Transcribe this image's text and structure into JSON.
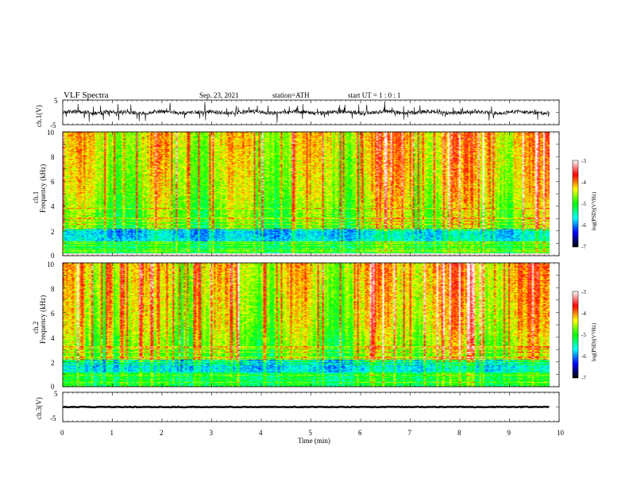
{
  "header": {
    "title": "VLF  Spectra",
    "date": "Sep. 23, 2021",
    "station": "station=ATH",
    "start": "start  UT  =    1  : 0   : 1"
  },
  "chart_data": [
    {
      "type": "line",
      "ylabel": "ch.1(V)",
      "ylim": [
        -5,
        5
      ],
      "yticks": [
        "5",
        "-5"
      ],
      "xlim": [
        0,
        10
      ],
      "series": [
        {
          "description_free": true,
          "color": "#000000",
          "approx_baseline": 0,
          "approx_amplitude": 5,
          "data_end_min": 9.8
        }
      ]
    },
    {
      "type": "heatmap",
      "ylabel": "ch.1\nFrequency (kHz)",
      "ylabel_line1": "ch.1",
      "ylabel_line2": "Frequency (kHz)",
      "ylim": [
        0,
        10
      ],
      "yticks": [
        "0",
        "2",
        "4",
        "6",
        "8",
        "10"
      ],
      "xlim": [
        0,
        10
      ],
      "data_end_min": 9.8,
      "colorbar": {
        "title": "log(PSD)(V²/Hz)",
        "range": [
          -7,
          -3
        ],
        "ticks": [
          "-3",
          "-4",
          "-5",
          "-6",
          "-7"
        ]
      }
    },
    {
      "type": "heatmap",
      "ylabel": "ch.2\nFrequency (kHz)",
      "ylabel_line1": "ch.2",
      "ylabel_line2": "Frequency (kHz)",
      "ylim": [
        0,
        10
      ],
      "yticks": [
        "0",
        "2",
        "4",
        "6",
        "8",
        "10"
      ],
      "xlim": [
        0,
        10
      ],
      "data_end_min": 9.8,
      "colorbar": {
        "title": "log(PSD)(V²/Hz)",
        "range": [
          -7,
          -3
        ],
        "ticks": [
          "-3",
          "-4",
          "-5",
          "-6",
          "-7"
        ]
      }
    },
    {
      "type": "line",
      "ylabel": "ch.3(V)",
      "ylim": [
        -5,
        5
      ],
      "yticks": [
        "5",
        "-5"
      ],
      "xlim": [
        0,
        10
      ],
      "xlabel": "Time  (min)",
      "xticks": [
        "0",
        "1",
        "2",
        "3",
        "4",
        "5",
        "6",
        "7",
        "8",
        "9",
        "10"
      ],
      "series": [
        {
          "color": "#000000",
          "approx_baseline": 0,
          "data_end_min": 9.8
        }
      ]
    }
  ],
  "colors": {
    "scale": [
      "#000000",
      "#0000ff",
      "#00ffff",
      "#00ff00",
      "#ffff00",
      "#ff0000",
      "#ffffff"
    ]
  }
}
